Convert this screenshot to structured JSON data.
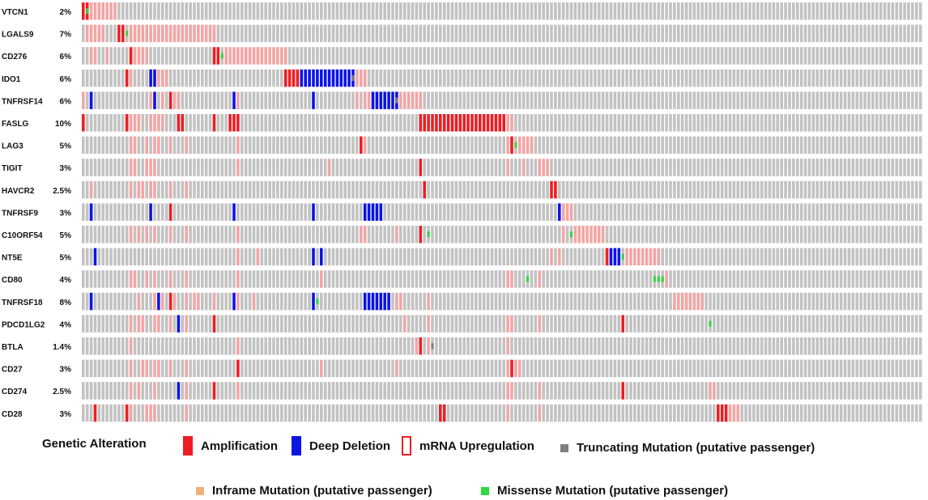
{
  "chart_data": {
    "type": "oncoprint",
    "sample_count": 212,
    "genes": [
      {
        "name": "VTCN1",
        "pct": "2%"
      },
      {
        "name": "LGALS9",
        "pct": "7%"
      },
      {
        "name": "CD276",
        "pct": "6%"
      },
      {
        "name": "IDO1",
        "pct": "6%"
      },
      {
        "name": "TNFRSF14",
        "pct": "6%"
      },
      {
        "name": "FASLG",
        "pct": "10%"
      },
      {
        "name": "LAG3",
        "pct": "5%"
      },
      {
        "name": "TIGIT",
        "pct": "3%"
      },
      {
        "name": "HAVCR2",
        "pct": "2.5%"
      },
      {
        "name": "TNFRSF9",
        "pct": "3%"
      },
      {
        "name": "C10ORF54",
        "pct": "5%"
      },
      {
        "name": "NT5E",
        "pct": "5%"
      },
      {
        "name": "CD80",
        "pct": "4%"
      },
      {
        "name": "TNFRSF18",
        "pct": "8%"
      },
      {
        "name": "PDCD1LG2",
        "pct": "4%"
      },
      {
        "name": "BTLA",
        "pct": "1.4%"
      },
      {
        "name": "CD27",
        "pct": "3%"
      },
      {
        "name": "CD274",
        "pct": "2.5%"
      },
      {
        "name": "CD28",
        "pct": "3%"
      }
    ],
    "alteration_codes": {
      "A": "amp",
      "D": "del",
      "M": "mrna",
      "T": "trunc",
      "I": "inframe",
      "S": "missense",
      "R": "amp+missense",
      "B": "del+mrna",
      "C": "del+trunc"
    },
    "alterations": [
      "A0,R1,M2-8",
      "M1-5,A9-10,S11,M12-33",
      "M2-3,M6,A12,M13-16,A33-34,S35,M36-51",
      "A11,M12,D17-18,M19-21,A51-54,D55-67,C68,M69-71",
      "M0,D2,M17,D18,M20,A22,M23-24,D38,M39,D58,M69,M71-72,D73-78,C79,M80-85",
      "A0,A11,M12-14,M17-20,A24-25,A33,A37-39,A85-106,M107-108",
      "M12-13,M16,M18-19,M22,M26,M39,A70,M71,M107,A108,S109,M110-113",
      "M12-13,M16-18,M39,M62,A85,M107,M111,M115-117",
      "M2,M12,M14-15,M17-18,M22,M26,A86,A118-119",
      "D2,D17,A22,D38,D58,D71-75,D120,M121-123",
      "M12,M14,M16,M18,M22,M26,M39,M70-71,M79,A85,S87,M121,S123,M124-131",
      "D3,M39,M44,D58,D60,M118,M120,A132,D133-135,S136,M137-145",
      "M12-13,M16,M18,M22,M26,M39,M60,M107-108,S112,M115,S144-146,M147",
      "D2,M14,M18,D19,M20,A22,M23,M26,M28-29,M33,D38,M39,D58,S59,M43,D71-77,M79-80,M87,M149-156",
      "M12,M14-15,M18-19,M22,D24,M26,A33,M81,M87,M107-108,M115,A136,S158",
      "M12,M39,M84,A85,M87,T88,M107",
      "M12,M15-16,M18-19,M22,M26,A39,M60,M79,M107,A108,M109-110",
      "M12,M14,M18,D24,M26,A33,M39,M107-108,M115,A136,M158-159",
      "A3,A11,M12,M16-18,M26,A90-91,M107,M115,A160-162,M163-165"
    ],
    "legend": {
      "title": "Genetic Alteration",
      "items": [
        {
          "key": "amp",
          "label": "Amplification",
          "color": "#ee1d23"
        },
        {
          "key": "del",
          "label": "Deep Deletion",
          "color": "#0c14e6"
        },
        {
          "key": "mrna",
          "label": "mRNA Upregulation",
          "color": "#ee1d23"
        },
        {
          "key": "trunc",
          "label": "Truncating Mutation (putative passenger)",
          "color": "#7f7f7f"
        },
        {
          "key": "inframe",
          "label": "Inframe Mutation (putative passenger)",
          "color": "#f0b27d"
        },
        {
          "key": "missense",
          "label": "Missense Mutation (putative passenger)",
          "color": "#2ed83d"
        }
      ]
    },
    "colors": {
      "base": "#c2c2c2",
      "amp": "#ee1d23",
      "del": "#0c14e6",
      "mrna": "#f2a5a5",
      "trunc": "#7f7f7f",
      "inframe": "#f0b27d",
      "missense": "#2ed83d"
    }
  }
}
